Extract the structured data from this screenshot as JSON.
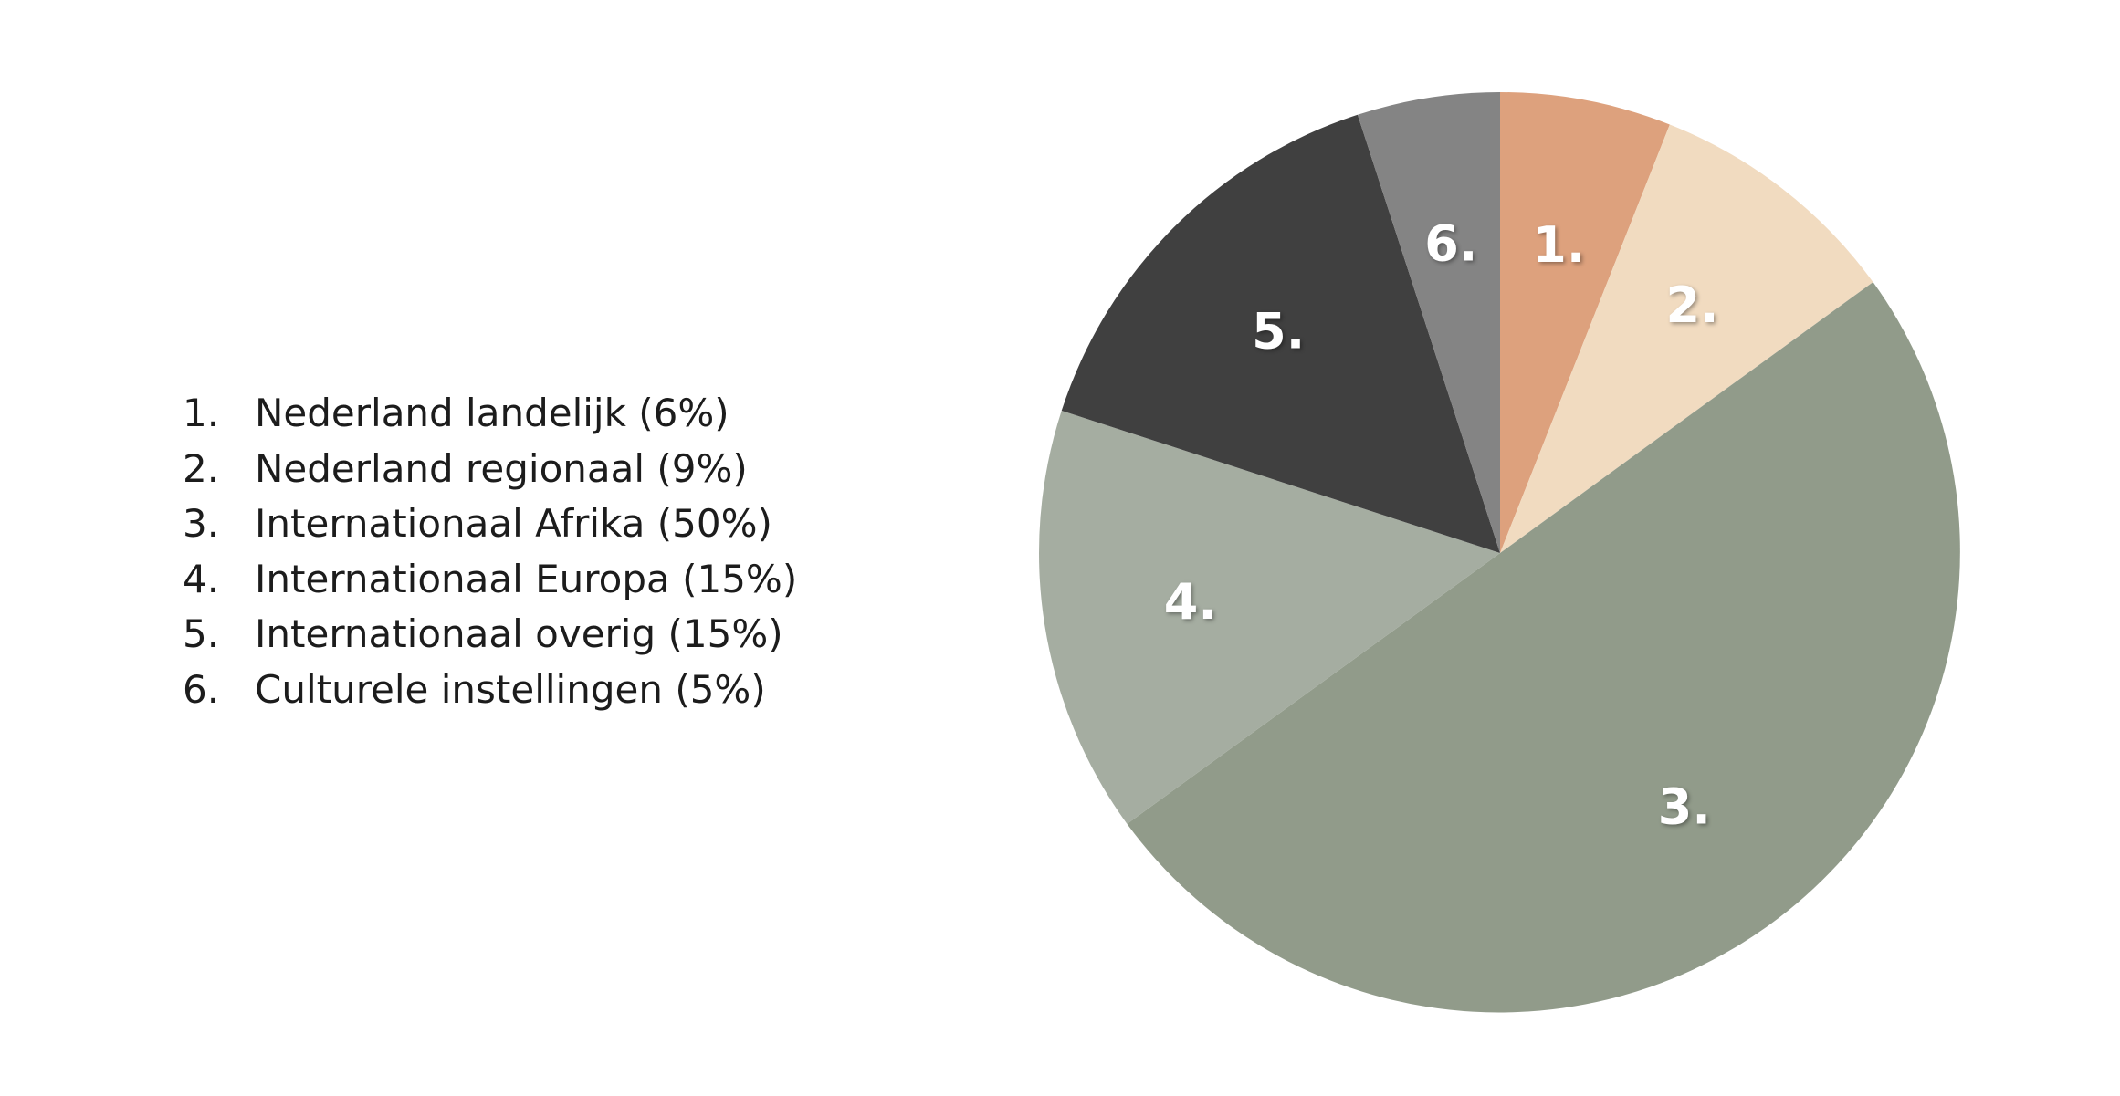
{
  "chart_data": {
    "type": "pie",
    "start_angle": "12 o'clock",
    "direction": "clockwise",
    "slices": [
      {
        "label": "1.",
        "legend_number": "1.",
        "legend_text": "Nederland landelijk (6%)",
        "value": 6,
        "color": "#DDA17D"
      },
      {
        "label": "2.",
        "legend_number": "2.",
        "legend_text": "Nederland regionaal  (9%)",
        "value": 9,
        "color": "#F1DBC0"
      },
      {
        "label": "3.",
        "legend_number": "3.",
        "legend_text": "Internationaal Afrika (50%)",
        "value": 50,
        "color": "#919B8A"
      },
      {
        "label": "4.",
        "legend_number": "4.",
        "legend_text": "Internationaal Europa (15%)",
        "value": 15,
        "color": "#A5ADA1"
      },
      {
        "label": "5.",
        "legend_number": "5.",
        "legend_text": "Internationaal overig (15%)",
        "value": 15,
        "color": "#404040"
      },
      {
        "label": "6.",
        "legend_number": "6.",
        "legend_text": "Culturele instellingen (5%)",
        "value": 5,
        "color": "#848484"
      }
    ],
    "legend_placement": "left"
  }
}
